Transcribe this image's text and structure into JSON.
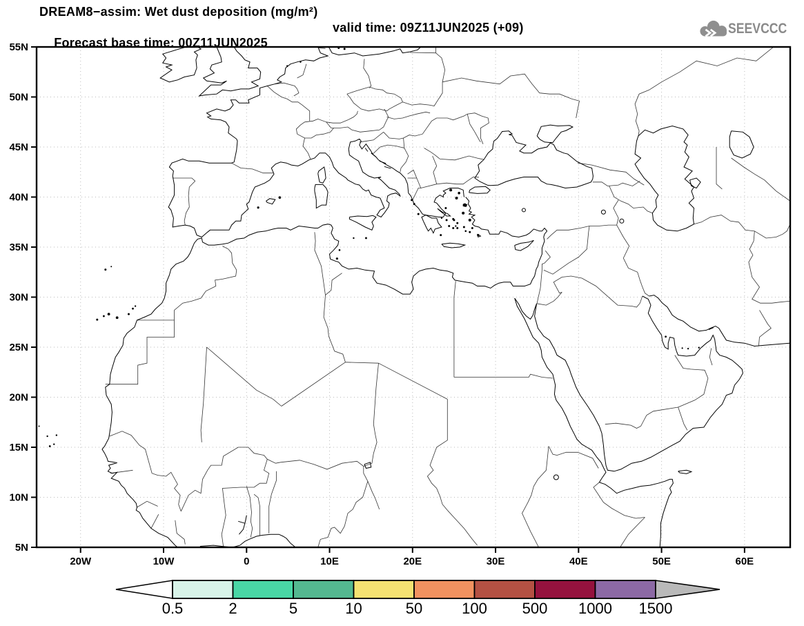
{
  "title": {
    "line1": "DREAM8−assim: Wet dust deposition (mg/m²)",
    "line2_left": "Forecast base time: 00Z11JUN2025",
    "line2_right": "valid time: 09Z11JUN2025 (+09)"
  },
  "logo": {
    "text": "SEEVCCC"
  },
  "axes": {
    "x_tick_labels": [
      "20W",
      "10W",
      "0",
      "10E",
      "20E",
      "30E",
      "40E",
      "50E",
      "60E"
    ],
    "y_tick_labels": [
      "55N",
      "50N",
      "45N",
      "40N",
      "35N",
      "30N",
      "25N",
      "20N",
      "15N",
      "10N",
      "5N"
    ]
  },
  "colorbar": {
    "labels": [
      "0.5",
      "2",
      "5",
      "10",
      "50",
      "100",
      "500",
      "1000",
      "1500"
    ],
    "colors": [
      "#d8f4e9",
      "#49d7a5",
      "#54b890",
      "#f5e272",
      "#f19260",
      "#b45143",
      "#95123e",
      "#8c69a5"
    ],
    "underflow_color": "#ffffff",
    "overflow_color": "#b9b9b9",
    "outline_color": "#000000"
  },
  "chart_data": {
    "type": "map",
    "model": "DREAM8-assim",
    "variable": "Wet dust deposition",
    "units": "mg/m²",
    "forecast_base_time": "00Z11JUN2025",
    "valid_time": "09Z11JUN2025",
    "forecast_hour": "+09",
    "projection": "lat-lon",
    "lon_range": [
      -25.3,
      65.5
    ],
    "lat_range": [
      5,
      55
    ],
    "lon_ticks_deg": [
      -20,
      -10,
      0,
      10,
      20,
      30,
      40,
      50,
      60
    ],
    "lat_ticks_deg": [
      55,
      50,
      45,
      40,
      35,
      30,
      25,
      20,
      15,
      10,
      5
    ],
    "grid": "dotted",
    "scale_levels_mg_m2": [
      0.5,
      2,
      5,
      10,
      50,
      100,
      500,
      1000,
      1500
    ],
    "scale_colors": [
      "#d8f4e9",
      "#49d7a5",
      "#54b890",
      "#f5e272",
      "#f19260",
      "#b45143",
      "#95123e",
      "#8c69a5"
    ],
    "deposition_regions_visible": []
  }
}
